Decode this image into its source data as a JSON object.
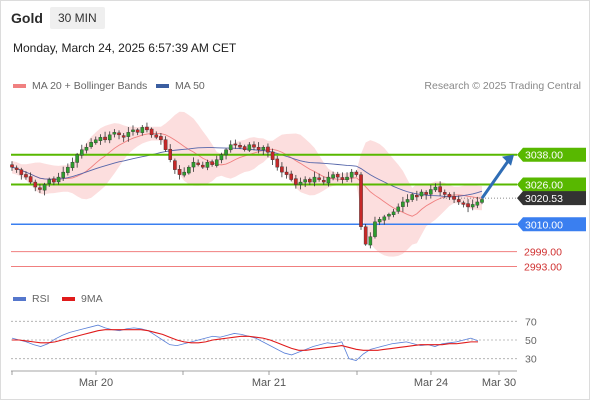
{
  "header": {
    "instrument": "Gold",
    "timeframe": "30 MIN",
    "datetime": "Monday, March 24, 2025 6:57:39 AM CET"
  },
  "legend": {
    "ma20_label": "MA 20 + Bollinger Bands",
    "ma50_label": "MA 50",
    "credit": "Research © 2025 Trading Central"
  },
  "rsi_legend": {
    "rsi_label": "RSI",
    "ma_label": "9MA"
  },
  "colors": {
    "candle_up": "#2e9e2e",
    "candle_down": "#c62828",
    "bollinger_fill": "#fbd3d3",
    "ma20": "#f08080",
    "ma50": "#5566aa",
    "resistance": "#58b800",
    "support": "#3a7ff0",
    "support_light": "#f07f7f",
    "arrow": "#2f6db5",
    "last_price": "#333333"
  },
  "chart_data": [
    {
      "type": "candlestick",
      "title": "Gold",
      "timeframe": "30 MIN",
      "x_ticks": [
        "Mar 20",
        "Mar 21",
        "Mar 24",
        "Mar 30"
      ],
      "ylim": [
        2990,
        3056
      ],
      "closes": [
        3033,
        3032,
        3030,
        3029,
        3027,
        3025,
        3024,
        3026,
        3028,
        3027,
        3029,
        3031,
        3033,
        3035,
        3038,
        3040,
        3041,
        3043,
        3044,
        3045,
        3044,
        3046,
        3047,
        3046,
        3045,
        3047,
        3048,
        3047,
        3049,
        3048,
        3046,
        3045,
        3044,
        3040,
        3036,
        3032,
        3030,
        3031,
        3033,
        3035,
        3034,
        3033,
        3035,
        3034,
        3036,
        3038,
        3040,
        3042,
        3042,
        3041,
        3040,
        3042,
        3041,
        3040,
        3041,
        3039,
        3036,
        3033,
        3031,
        3030,
        3028,
        3026,
        3027,
        3028,
        3027,
        3029,
        3028,
        3027,
        3029,
        3030,
        3029,
        3028,
        3029,
        3031,
        3030,
        3009,
        3002,
        3005,
        3011,
        3012,
        3013,
        3014,
        3015,
        3017,
        3019,
        3020,
        3022,
        3021,
        3023,
        3022,
        3024,
        3025,
        3023,
        3022,
        3021,
        3020,
        3019,
        3018,
        3017,
        3018,
        3019,
        3020
      ],
      "ma50_end": 3024,
      "price_levels": [
        {
          "label": "3038.00",
          "value": 3038,
          "type": "resistance"
        },
        {
          "label": "3026.00",
          "value": 3026,
          "type": "resistance"
        },
        {
          "label": "3020.53",
          "value": 3020.53,
          "type": "last"
        },
        {
          "label": "3010.00",
          "value": 3010,
          "type": "support"
        },
        {
          "label": "2999.00",
          "value": 2999,
          "type": "support_light"
        },
        {
          "label": "2993.00",
          "value": 2993,
          "type": "support_light"
        }
      ],
      "forecast_arrow": {
        "from": 3020.5,
        "to": 3038
      }
    },
    {
      "type": "line",
      "title": "RSI",
      "y_ticks": [
        "70",
        "50",
        "30"
      ],
      "ylim": [
        20,
        80
      ],
      "series": [
        {
          "name": "RSI",
          "values": [
            52,
            50,
            48,
            45,
            43,
            46,
            51,
            55,
            58,
            60,
            62,
            64,
            66,
            63,
            61,
            60,
            62,
            63,
            62,
            60,
            55,
            50,
            45,
            44,
            46,
            48,
            50,
            52,
            54,
            53,
            55,
            57,
            56,
            54,
            52,
            48,
            44,
            40,
            36,
            34,
            37,
            40,
            43,
            45,
            47,
            46,
            48,
            30,
            28,
            35,
            40,
            42,
            44,
            46,
            47,
            48,
            46,
            44,
            45,
            43,
            46,
            47,
            48,
            50,
            52,
            49
          ]
        },
        {
          "name": "9MA",
          "values": [
            50,
            50,
            49,
            48,
            47,
            47,
            48,
            50,
            52,
            54,
            56,
            58,
            60,
            61,
            61,
            61,
            61,
            61,
            61,
            60,
            58,
            56,
            53,
            50,
            48,
            47,
            47,
            48,
            50,
            51,
            52,
            53,
            54,
            54,
            53,
            52,
            50,
            47,
            44,
            41,
            39,
            39,
            40,
            41,
            42,
            43,
            44,
            42,
            40,
            39,
            39,
            39,
            40,
            41,
            42,
            43,
            44,
            45,
            45,
            45,
            45,
            46,
            46,
            47,
            48,
            48
          ]
        }
      ]
    }
  ]
}
